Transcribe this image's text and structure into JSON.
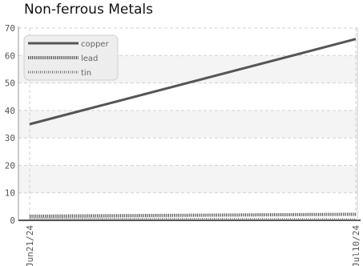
{
  "chart_data": {
    "type": "line",
    "title": "Non-ferrous Metals",
    "xlabel": "",
    "ylabel": "",
    "x": [
      "Jun21/24",
      "Jul10/24"
    ],
    "x_tick_labels": [
      "Jun21/24",
      "Jul10/24"
    ],
    "ylim": [
      0,
      70
    ],
    "y_ticks": [
      0,
      10,
      20,
      30,
      40,
      50,
      60,
      70
    ],
    "grid": true,
    "legend_position": "top-left",
    "series": [
      {
        "name": "copper",
        "values": [
          35,
          66
        ],
        "color": "#555555",
        "style": "solid"
      },
      {
        "name": "lead",
        "values": [
          1.5,
          2.2
        ],
        "color": "#555555",
        "style": "dotted"
      },
      {
        "name": "tin",
        "values": [
          0.6,
          0.3
        ],
        "color": "#777777",
        "style": "dotted-thin"
      }
    ]
  }
}
